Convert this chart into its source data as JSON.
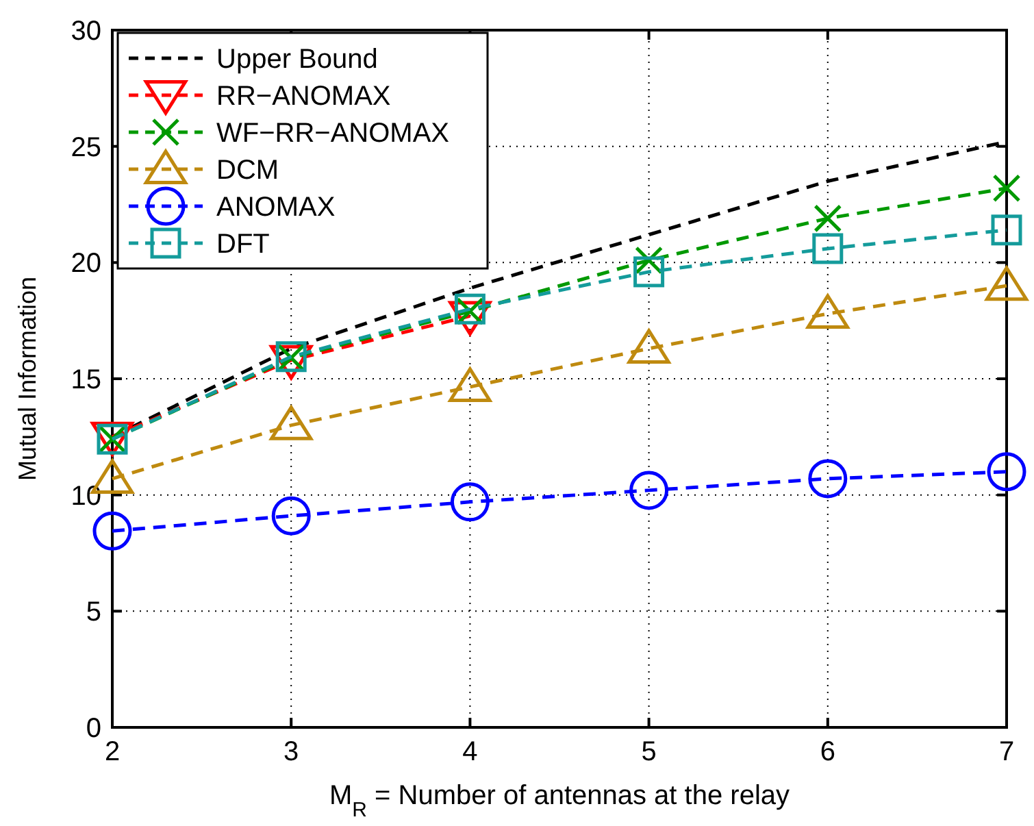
{
  "chart_data": {
    "type": "line",
    "xlabel": "M$_{R}$ = Number of antennas at the relay",
    "ylabel": "Mutual Information",
    "x": [
      2,
      3,
      4,
      5,
      6,
      7
    ],
    "xlim": [
      2,
      7
    ],
    "xticks": [
      2,
      3,
      4,
      5,
      6,
      7
    ],
    "ylim": [
      0,
      30
    ],
    "yticks": [
      0,
      5,
      10,
      15,
      20,
      25,
      30
    ],
    "grid": true,
    "legend": "top left",
    "line_style": "dashed",
    "series": [
      {
        "name": "Upper Bound",
        "color": "#000000",
        "marker": "none",
        "values": [
          12.5,
          16.3,
          18.9,
          21.2,
          23.5,
          25.2
        ]
      },
      {
        "name": "RR−ANOMAX",
        "color": "#ff0000",
        "marker": "triangle-down",
        "values": [
          12.5,
          15.8,
          17.7,
          null,
          null,
          null
        ]
      },
      {
        "name": "WF−RR−ANOMAX",
        "color": "#009900",
        "marker": "cross",
        "values": [
          12.4,
          15.9,
          17.9,
          20.1,
          21.9,
          23.2
        ]
      },
      {
        "name": "DCM",
        "color": "#bf8a0f",
        "marker": "triangle",
        "values": [
          10.7,
          13.0,
          14.65,
          16.3,
          17.8,
          19.0
        ]
      },
      {
        "name": "ANOMAX",
        "color": "#0000ff",
        "marker": "circle",
        "values": [
          8.45,
          9.1,
          9.7,
          10.2,
          10.7,
          11.0
        ]
      },
      {
        "name": "DFT",
        "color": "#149b9b",
        "marker": "square",
        "values": [
          12.4,
          15.95,
          18.0,
          19.6,
          20.6,
          21.4
        ]
      }
    ]
  }
}
